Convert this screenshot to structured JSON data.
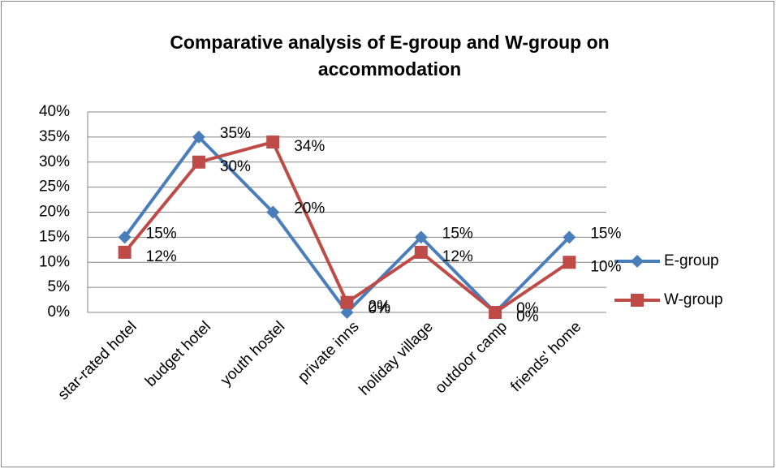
{
  "chart_data": {
    "type": "line",
    "title": "Comparative analysis of E-group and W-group on accommodation",
    "categories": [
      "star-rated hotel",
      "budget hotel",
      "youth hostel",
      "private inns",
      "holiday village",
      "outdoor camp",
      "friends' home"
    ],
    "series": [
      {
        "name": "E-group",
        "color": "#4a7ebb",
        "marker": "diamond",
        "values": [
          15,
          35,
          20,
          0,
          15,
          0,
          15
        ],
        "value_labels": [
          "15%",
          "35%",
          "20%",
          "0%",
          "15%",
          "0%",
          "15%"
        ]
      },
      {
        "name": "W-group",
        "color": "#be4b48",
        "marker": "square",
        "values": [
          12,
          30,
          34,
          2,
          12,
          0,
          10
        ],
        "value_labels": [
          "12%",
          "30%",
          "34%",
          "2%",
          "12%",
          "0%",
          "10%"
        ]
      }
    ],
    "ylim": [
      0,
      40
    ],
    "yticks": [
      {
        "value": 0,
        "label": "0%"
      },
      {
        "value": 5,
        "label": "5%"
      },
      {
        "value": 10,
        "label": "10%"
      },
      {
        "value": 15,
        "label": "15%"
      },
      {
        "value": 20,
        "label": "20%"
      },
      {
        "value": 25,
        "label": "25%"
      },
      {
        "value": 30,
        "label": "30%"
      },
      {
        "value": 35,
        "label": "35%"
      },
      {
        "value": 40,
        "label": "40%"
      }
    ],
    "grid": true,
    "legend": "right"
  }
}
